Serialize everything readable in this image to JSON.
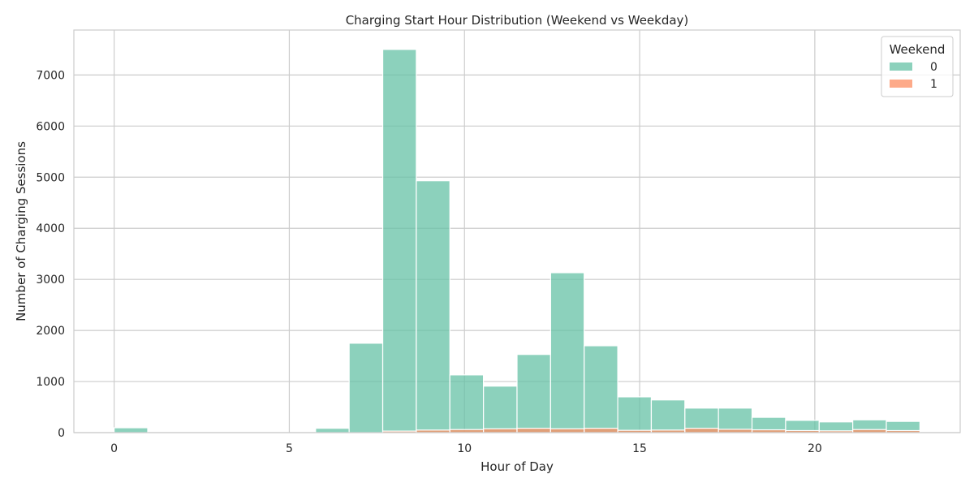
{
  "chart_data": {
    "type": "bar",
    "title": "Charging Start Hour Distribution (Weekend vs Weekday)",
    "xlabel": "Hour of Day",
    "ylabel": "Number of Charging Sessions",
    "xlim": [
      -1.15,
      24.15
    ],
    "ylim": [
      0,
      7880
    ],
    "x_ticks": [
      0,
      5,
      10,
      15,
      20
    ],
    "y_ticks": [
      0,
      1000,
      2000,
      3000,
      4000,
      5000,
      6000,
      7000
    ],
    "grid": true,
    "bin_width": 0.958,
    "bin_starts": [
      0,
      0.958,
      1.917,
      2.875,
      3.833,
      4.792,
      5.75,
      6.708,
      7.667,
      8.625,
      9.583,
      10.542,
      11.5,
      12.458,
      13.417,
      14.375,
      15.333,
      16.292,
      17.25,
      18.208,
      19.167,
      20.125,
      21.083,
      22.042
    ],
    "series": [
      {
        "name": "0",
        "color": "#66c2a5",
        "values": [
          95,
          0,
          0,
          0,
          0,
          0,
          85,
          1750,
          7500,
          4930,
          1130,
          910,
          1530,
          3130,
          1700,
          700,
          640,
          480,
          480,
          300,
          240,
          210,
          250,
          220
        ]
      },
      {
        "name": "1",
        "color": "#fc8d62",
        "values": [
          0,
          0,
          0,
          0,
          0,
          0,
          0,
          0,
          30,
          50,
          60,
          75,
          85,
          75,
          85,
          45,
          50,
          85,
          65,
          55,
          40,
          35,
          60,
          40
        ]
      }
    ],
    "legend": {
      "title": "Weekend",
      "position": "top-right",
      "entries": [
        "0",
        "1"
      ]
    }
  }
}
